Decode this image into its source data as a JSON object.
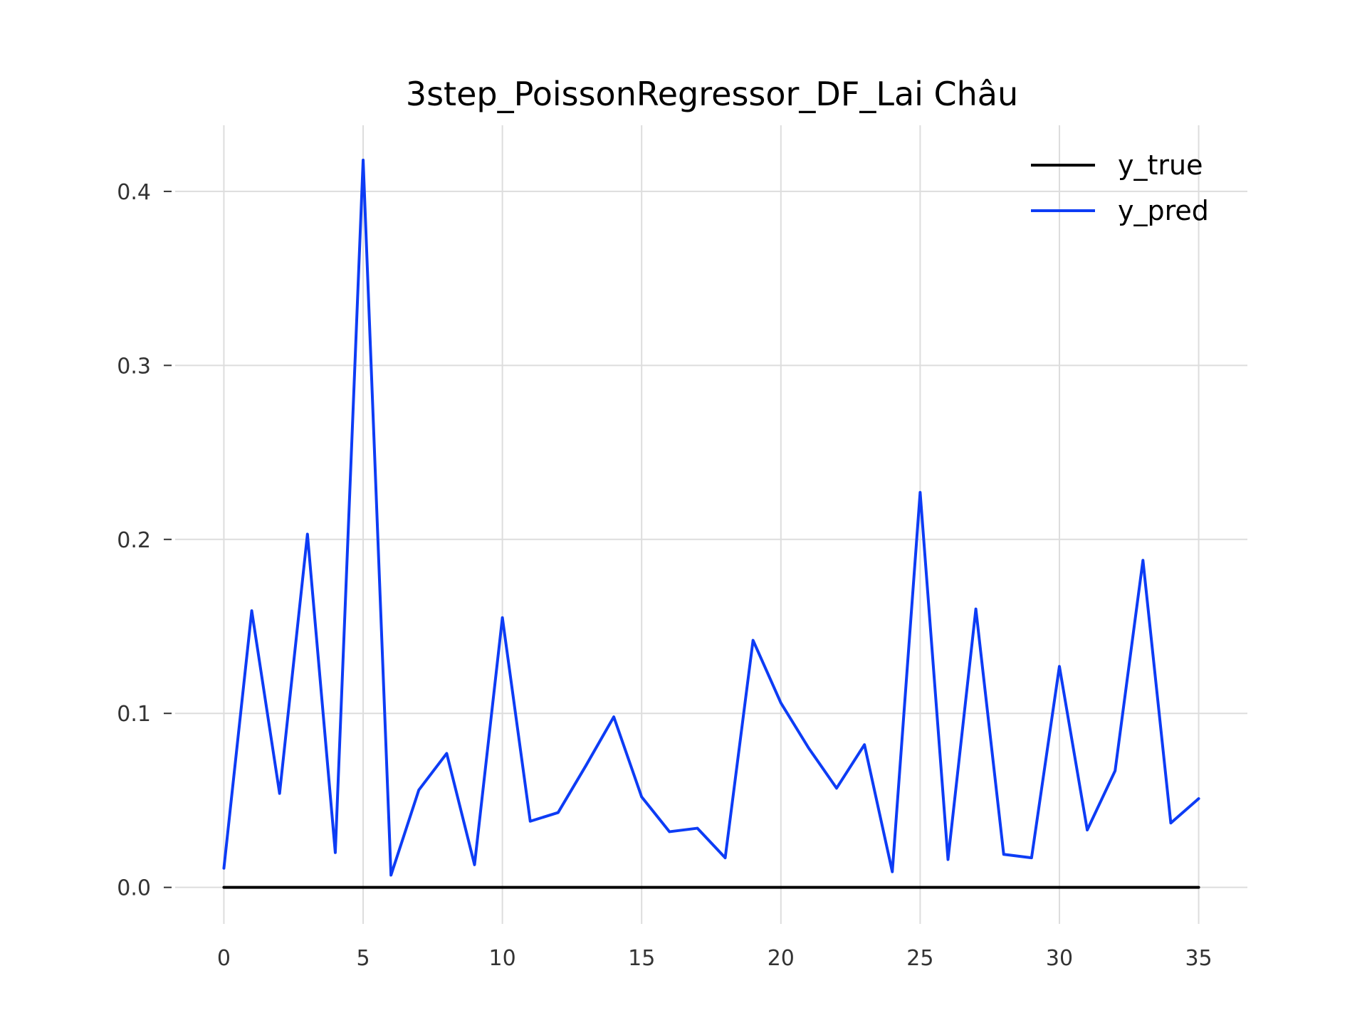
{
  "chart_data": {
    "type": "line",
    "title": "3step_PoissonRegressor_DF_Lai Châu",
    "xlabel": "",
    "ylabel": "",
    "xlim": [
      -1.75,
      36.75
    ],
    "ylim": [
      -0.021,
      0.438
    ],
    "x_ticks": [
      0,
      5,
      10,
      15,
      20,
      25,
      30,
      35
    ],
    "x_tick_labels": [
      "0",
      "5",
      "10",
      "15",
      "20",
      "25",
      "30",
      "35"
    ],
    "y_ticks": [
      0.0,
      0.1,
      0.2,
      0.3,
      0.4
    ],
    "y_tick_labels": [
      "0.0",
      "0.1",
      "0.2",
      "0.3",
      "0.4"
    ],
    "grid": true,
    "legend_position": "top-right",
    "x": [
      0,
      1,
      2,
      3,
      4,
      5,
      6,
      7,
      8,
      9,
      10,
      11,
      12,
      13,
      14,
      15,
      16,
      17,
      18,
      19,
      20,
      21,
      22,
      23,
      24,
      25,
      26,
      27,
      28,
      29,
      30,
      31,
      32,
      33,
      34,
      35
    ],
    "series": [
      {
        "name": "y_true",
        "color": "#000000",
        "values": [
          0,
          0,
          0,
          0,
          0,
          0,
          0,
          0,
          0,
          0,
          0,
          0,
          0,
          0,
          0,
          0,
          0,
          0,
          0,
          0,
          0,
          0,
          0,
          0,
          0,
          0,
          0,
          0,
          0,
          0,
          0,
          0,
          0,
          0,
          0,
          0
        ]
      },
      {
        "name": "y_pred",
        "color": "#0d3cf5",
        "values": [
          0.011,
          0.159,
          0.054,
          0.203,
          0.02,
          0.418,
          0.007,
          0.056,
          0.077,
          0.013,
          0.155,
          0.038,
          0.043,
          0.07,
          0.098,
          0.052,
          0.032,
          0.034,
          0.017,
          0.142,
          0.106,
          0.08,
          0.057,
          0.082,
          0.009,
          0.227,
          0.016,
          0.16,
          0.019,
          0.017,
          0.127,
          0.033,
          0.067,
          0.188,
          0.037,
          0.051
        ]
      }
    ]
  }
}
